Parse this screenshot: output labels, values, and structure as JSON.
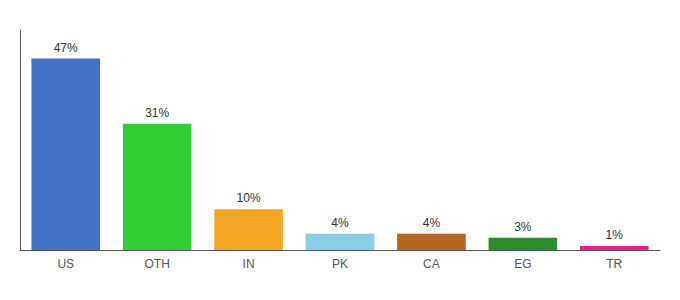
{
  "chart_data": {
    "type": "bar",
    "categories": [
      "US",
      "OTH",
      "IN",
      "PK",
      "CA",
      "EG",
      "TR"
    ],
    "values": [
      47,
      31,
      10,
      4,
      4,
      3,
      1
    ],
    "value_labels": [
      "47%",
      "31%",
      "10%",
      "4%",
      "4%",
      "3%",
      "1%"
    ],
    "colors": [
      "#4472c4",
      "#33cc33",
      "#f5a623",
      "#87ceeb",
      "#b5651d",
      "#2e8b2e",
      "#e91e8c"
    ],
    "ylim": [
      0,
      54
    ],
    "data_labels": true,
    "tick_labels": "x",
    "grid": false
  }
}
